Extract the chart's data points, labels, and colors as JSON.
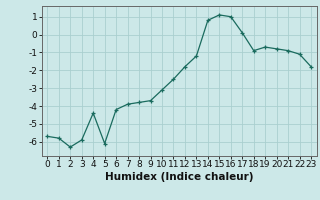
{
  "x": [
    0,
    1,
    2,
    3,
    4,
    5,
    6,
    7,
    8,
    9,
    10,
    11,
    12,
    13,
    14,
    15,
    16,
    17,
    18,
    19,
    20,
    21,
    22,
    23
  ],
  "y": [
    -5.7,
    -5.8,
    -6.3,
    -5.9,
    -4.4,
    -6.1,
    -4.2,
    -3.9,
    -3.8,
    -3.7,
    -3.1,
    -2.5,
    -1.8,
    -1.2,
    0.8,
    1.1,
    1.0,
    0.1,
    -0.9,
    -0.7,
    -0.8,
    -0.9,
    -1.1,
    -1.8
  ],
  "xlabel": "Humidex (Indice chaleur)",
  "xlim": [
    -0.5,
    23.5
  ],
  "ylim": [
    -6.8,
    1.6
  ],
  "yticks": [
    1,
    0,
    -1,
    -2,
    -3,
    -4,
    -5,
    -6
  ],
  "xticks": [
    0,
    1,
    2,
    3,
    4,
    5,
    6,
    7,
    8,
    9,
    10,
    11,
    12,
    13,
    14,
    15,
    16,
    17,
    18,
    19,
    20,
    21,
    22,
    23
  ],
  "line_color": "#1a6b5e",
  "marker": "+",
  "bg_color": "#cce8e8",
  "grid_color": "#aacfcf",
  "xlabel_fontsize": 7.5,
  "tick_fontsize": 6.5
}
